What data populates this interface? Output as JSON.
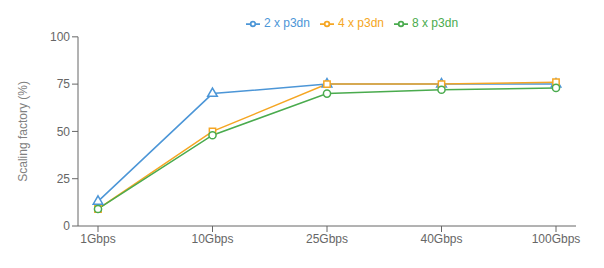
{
  "chart_data": {
    "type": "line",
    "categories": [
      "1Gbps",
      "10Gbps",
      "25Gbps",
      "40Gbps",
      "100Gbps"
    ],
    "series": [
      {
        "name": "2 x p3dn",
        "color": "#4c96d7",
        "marker": "triangle",
        "values": [
          13,
          70,
          75,
          75,
          75
        ]
      },
      {
        "name": "4 x p3dn",
        "color": "#f5a623",
        "marker": "square",
        "values": [
          9,
          50,
          75,
          75,
          76
        ]
      },
      {
        "name": "8 x p3dn",
        "color": "#4aab4e",
        "marker": "circle",
        "values": [
          9,
          48,
          70,
          72,
          73
        ]
      }
    ],
    "ylabel": "Scaling factory (%)",
    "ylim": [
      0,
      100
    ],
    "yticks": [
      0,
      25,
      50,
      75,
      100
    ],
    "grid": false,
    "legend": "top"
  }
}
